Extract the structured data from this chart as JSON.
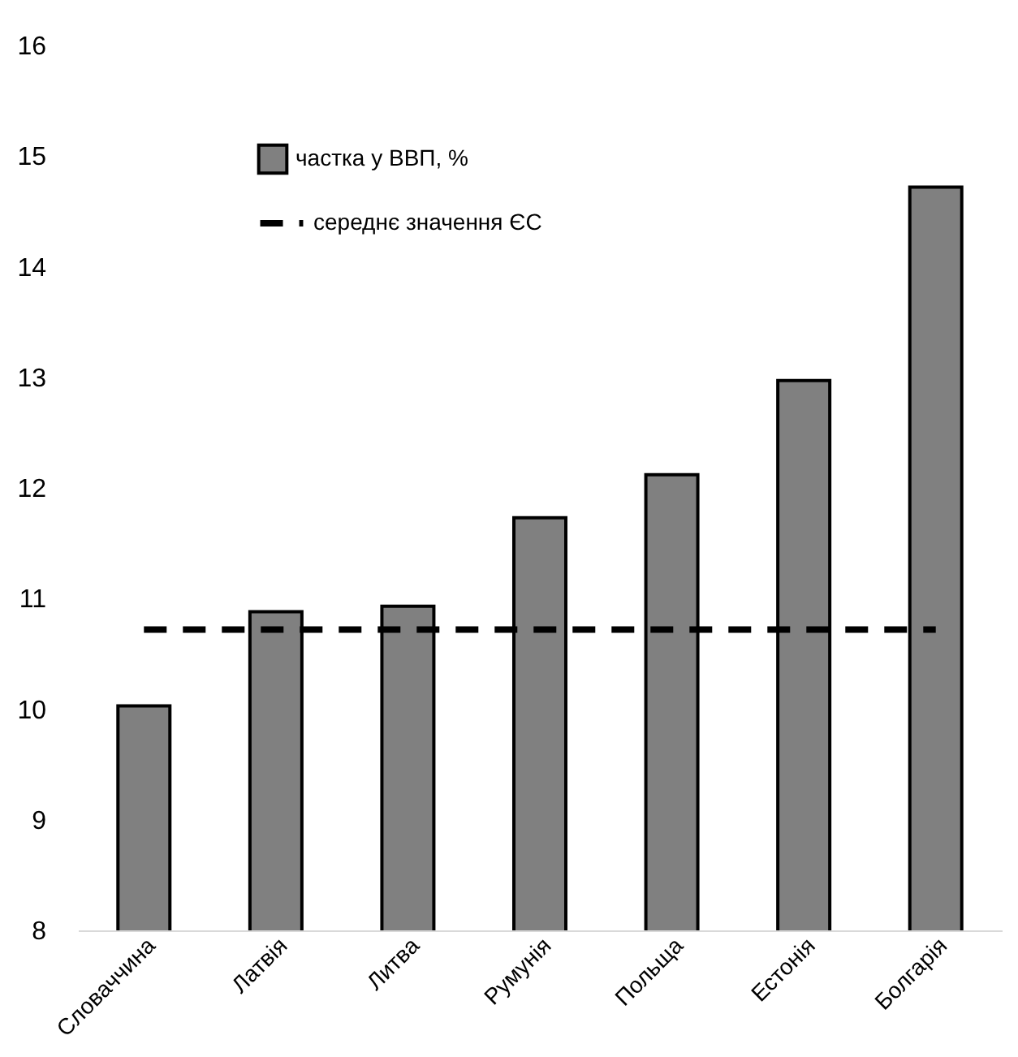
{
  "chart_data": {
    "type": "bar",
    "categories": [
      "Словаччина",
      "Латвія",
      "Литва",
      "Румунія",
      "Польща",
      "Естонія",
      "Болгарія"
    ],
    "series": [
      {
        "name": "частка у ВВП, %",
        "color": "#808080",
        "values": [
          10.03,
          10.88,
          10.93,
          11.73,
          12.12,
          12.97,
          14.72
        ]
      }
    ],
    "ylim": [
      8,
      16
    ],
    "yticks": [
      8,
      9,
      10,
      11,
      12,
      13,
      14,
      15,
      16
    ],
    "grid": false,
    "legend": "top left",
    "ref_lines": [
      {
        "axis": "y",
        "value": 10.72,
        "label": "середнє значення ЄС",
        "color": "#000000",
        "line_style": "dashed"
      }
    ]
  }
}
